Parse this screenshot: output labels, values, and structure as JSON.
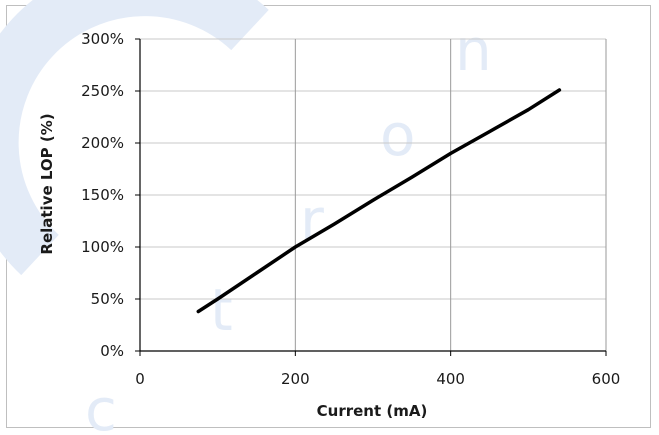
{
  "chart_data": {
    "type": "line",
    "xlabel": "Current (mA)",
    "ylabel": "Relative LOP (%)",
    "xlim": [
      0,
      600
    ],
    "ylim": [
      0,
      300
    ],
    "x_ticks": [
      0,
      200,
      400,
      600
    ],
    "y_ticks": [
      0,
      50,
      100,
      150,
      200,
      250,
      300
    ],
    "x_tick_labels": [
      "0",
      "200",
      "400",
      "600"
    ],
    "y_tick_labels": [
      "0%",
      "50%",
      "100%",
      "150%",
      "200%",
      "250%",
      "300%"
    ],
    "grid": "vertical and horizontal",
    "series": [
      {
        "x": [
          75,
          100,
          150,
          200,
          250,
          300,
          350,
          400,
          450,
          500,
          540
        ],
        "y": [
          38,
          50,
          75,
          100,
          122,
          145,
          167,
          190,
          211,
          232,
          251
        ]
      }
    ],
    "line_color": "#000000",
    "watermark_text": "ctron",
    "watermark_color": "#e3ebf7"
  }
}
